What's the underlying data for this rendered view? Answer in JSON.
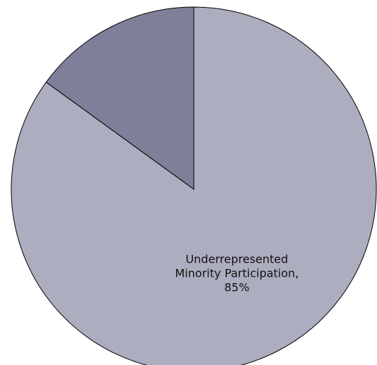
{
  "chart_data": {
    "type": "pie",
    "title": "",
    "start_angle_deg": 0,
    "direction": "clockwise",
    "slices": [
      {
        "label_lines": [
          "Underrepresented",
          "Minority Participation,",
          "85%"
        ],
        "value": 85,
        "color": "#adadc0"
      },
      {
        "label_lines": [],
        "value": 15,
        "color": "#7f7f99"
      }
    ],
    "legend": "none"
  }
}
